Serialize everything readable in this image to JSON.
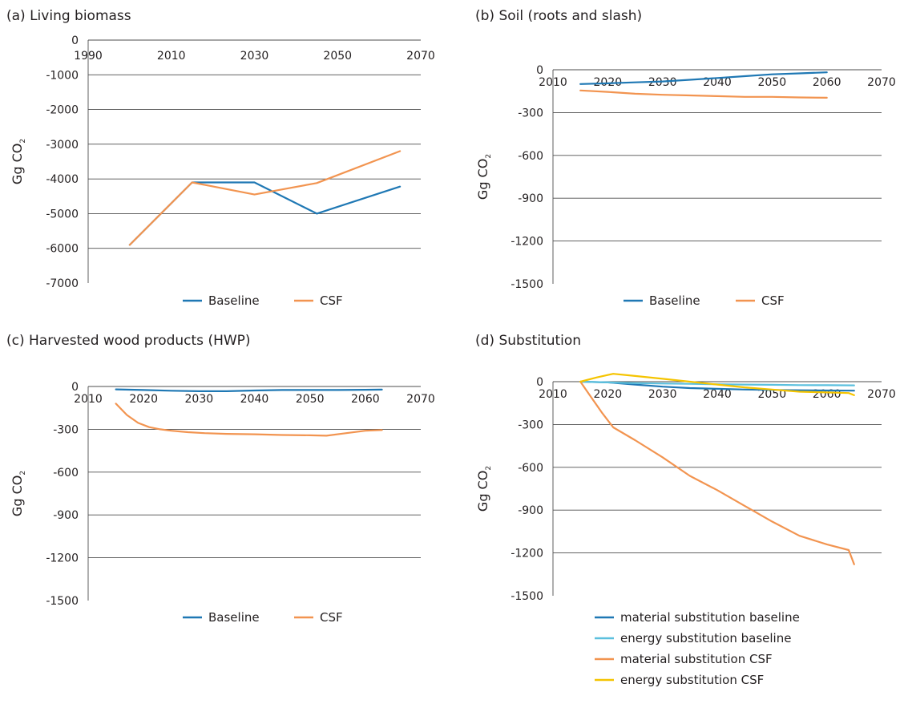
{
  "chart_data": [
    {
      "type": "line",
      "title": "(a) Living biomass",
      "ylabel": "Gg CO",
      "ylabel_sub": "2",
      "xlim": [
        1990,
        2070
      ],
      "ylim": [
        -7000,
        0
      ],
      "xticks": [
        1990,
        2010,
        2030,
        2050,
        2070
      ],
      "yticks": [
        0,
        -1000,
        -2000,
        -3000,
        -4000,
        -5000,
        -6000,
        -7000
      ],
      "grid": true,
      "legend": "bottom",
      "series": [
        {
          "name": "Baseline",
          "color": "#1f78b4",
          "x": [
            2000,
            2015,
            2030,
            2045,
            2065
          ],
          "y": [
            -5900,
            -4100,
            -4100,
            -5000,
            -4220
          ]
        },
        {
          "name": "CSF",
          "color": "#f29450",
          "x": [
            2000,
            2015,
            2030,
            2045,
            2065
          ],
          "y": [
            -5900,
            -4100,
            -4450,
            -4120,
            -3200
          ]
        }
      ]
    },
    {
      "type": "line",
      "title": "(b) Soil (roots and slash)",
      "ylabel": "Gg CO",
      "ylabel_sub": "2",
      "xlim": [
        2010,
        2070
      ],
      "ylim": [
        -1500,
        0
      ],
      "xticks": [
        2010,
        2020,
        2030,
        2040,
        2050,
        2060,
        2070
      ],
      "yticks": [
        0,
        -300,
        -600,
        -900,
        -1200,
        -1500
      ],
      "grid": true,
      "legend": "bottom",
      "series": [
        {
          "name": "Baseline",
          "color": "#1f78b4",
          "x": [
            2015,
            2020,
            2025,
            2030,
            2035,
            2040,
            2045,
            2050,
            2055,
            2060
          ],
          "y": [
            -100,
            -95,
            -88,
            -82,
            -70,
            -58,
            -45,
            -32,
            -25,
            -18
          ]
        },
        {
          "name": "CSF",
          "color": "#f29450",
          "x": [
            2015,
            2020,
            2025,
            2030,
            2035,
            2040,
            2045,
            2050,
            2055,
            2060
          ],
          "y": [
            -145,
            -155,
            -168,
            -175,
            -180,
            -185,
            -190,
            -190,
            -194,
            -196
          ]
        }
      ]
    },
    {
      "type": "line",
      "title": "(c) Harvested wood products (HWP)",
      "ylabel": "Gg CO",
      "ylabel_sub": "2",
      "xlim": [
        2010,
        2070
      ],
      "ylim": [
        -1500,
        0
      ],
      "xticks": [
        2010,
        2020,
        2030,
        2040,
        2050,
        2060,
        2070
      ],
      "yticks": [
        0,
        -300,
        -600,
        -900,
        -1200,
        -1500
      ],
      "grid": true,
      "legend": "bottom",
      "series": [
        {
          "name": "Baseline",
          "color": "#1f78b4",
          "x": [
            2015,
            2020,
            2025,
            2030,
            2035,
            2040,
            2045,
            2050,
            2055,
            2060,
            2063
          ],
          "y": [
            -20,
            -25,
            -30,
            -33,
            -33,
            -28,
            -25,
            -25,
            -25,
            -23,
            -22
          ]
        },
        {
          "name": "CSF",
          "color": "#f29450",
          "x": [
            2015,
            2017,
            2019,
            2021,
            2023,
            2025,
            2028,
            2031,
            2035,
            2040,
            2045,
            2050,
            2053,
            2056,
            2060,
            2063
          ],
          "y": [
            -120,
            -200,
            -255,
            -285,
            -300,
            -310,
            -320,
            -327,
            -332,
            -335,
            -340,
            -342,
            -345,
            -330,
            -310,
            -305
          ]
        }
      ]
    },
    {
      "type": "line",
      "title": "(d) Substitution",
      "ylabel": "Gg CO",
      "ylabel_sub": "2",
      "xlim": [
        2010,
        2070
      ],
      "ylim": [
        -1500,
        0
      ],
      "xticks": [
        2010,
        2020,
        2030,
        2040,
        2050,
        2060,
        2070
      ],
      "yticks": [
        0,
        -300,
        -600,
        -900,
        -1200,
        -1500
      ],
      "grid": true,
      "legend": "bottom",
      "series": [
        {
          "name": "material substitution baseline",
          "color": "#1f78b4",
          "x": [
            2015,
            2020,
            2025,
            2030,
            2035,
            2040,
            2045,
            2050,
            2055,
            2060,
            2065
          ],
          "y": [
            0,
            -5,
            -20,
            -35,
            -45,
            -50,
            -55,
            -58,
            -60,
            -62,
            -63
          ]
        },
        {
          "name": "energy substitution baseline",
          "color": "#5bc0de",
          "x": [
            2015,
            2020,
            2025,
            2030,
            2035,
            2040,
            2045,
            2050,
            2055,
            2060,
            2065
          ],
          "y": [
            0,
            -5,
            -10,
            -13,
            -15,
            -18,
            -20,
            -22,
            -24,
            -25,
            -26
          ]
        },
        {
          "name": "material substitution CSF",
          "color": "#f29450",
          "x": [
            2015,
            2017,
            2019,
            2021,
            2025,
            2030,
            2035,
            2040,
            2045,
            2050,
            2055,
            2060,
            2064,
            2065
          ],
          "y": [
            0,
            -110,
            -220,
            -320,
            -410,
            -530,
            -660,
            -760,
            -870,
            -980,
            -1080,
            -1140,
            -1180,
            -1280
          ]
        },
        {
          "name": "energy substitution CSF",
          "color": "#f5c400",
          "x": [
            2015,
            2018,
            2021,
            2025,
            2030,
            2035,
            2040,
            2045,
            2050,
            2055,
            2060,
            2064,
            2065
          ],
          "y": [
            0,
            30,
            55,
            40,
            20,
            0,
            -20,
            -40,
            -55,
            -70,
            -75,
            -80,
            -95
          ]
        }
      ]
    }
  ]
}
